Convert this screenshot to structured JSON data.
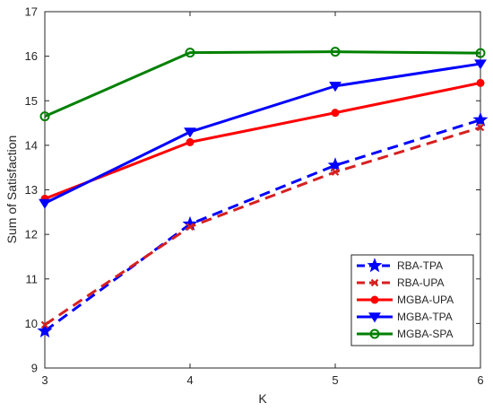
{
  "chart_data": {
    "type": "line",
    "xlabel": "K",
    "ylabel": "Sum of Satisfaction",
    "x": [
      3,
      4,
      5,
      6
    ],
    "xlim": [
      3,
      6
    ],
    "ylim": [
      9,
      17
    ],
    "x_ticks": [
      "3",
      "4",
      "5",
      "6"
    ],
    "y_ticks": [
      "9",
      "10",
      "11",
      "12",
      "13",
      "14",
      "15",
      "16",
      "17"
    ],
    "grid": false,
    "legend_position": "bottom-right",
    "series": [
      {
        "name": "RBA-TPA",
        "values": [
          9.83,
          12.23,
          13.55,
          14.57
        ],
        "color": "#0000ff",
        "dash": "dashed",
        "marker": "star"
      },
      {
        "name": "RBA-UPA",
        "values": [
          9.97,
          12.17,
          13.4,
          14.4
        ],
        "color": "#d62020",
        "dash": "dashed",
        "marker": "x"
      },
      {
        "name": "MGBA-UPA",
        "values": [
          12.8,
          14.07,
          14.73,
          15.4
        ],
        "color": "#ff0000",
        "dash": "solid",
        "marker": "circle-filled"
      },
      {
        "name": "MGBA-TPA",
        "values": [
          12.7,
          14.3,
          15.33,
          15.83
        ],
        "color": "#0000ff",
        "dash": "solid",
        "marker": "triangle-down"
      },
      {
        "name": "MGBA-SPA",
        "values": [
          14.65,
          16.08,
          16.1,
          16.07
        ],
        "color": "#008000",
        "dash": "solid",
        "marker": "circle-open"
      }
    ]
  }
}
